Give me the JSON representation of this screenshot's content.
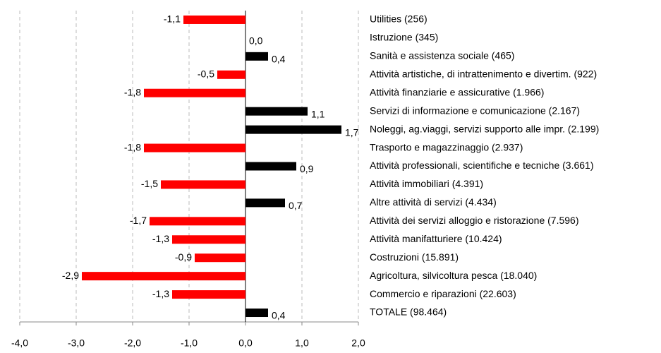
{
  "chart_data": {
    "type": "bar",
    "orientation": "horizontal",
    "categories": [
      "Utilities (256)",
      "Istruzione (345)",
      "Sanità e assistenza sociale (465)",
      "Attività artistiche, di intrattenimento e divertim. (922)",
      "Attività finanziarie e assicurative (1.966)",
      "Servizi di informazione e comunicazione (2.167)",
      "Noleggi, ag.viaggi, servizi supporto alle impr. (2.199)",
      "Trasporto e magazzinaggio (2.937)",
      "Attività professionali, scientifiche e tecniche (3.661)",
      "Attività immobiliari (4.391)",
      "Altre attività di servizi (4.434)",
      "Attività dei servizi alloggio e ristorazione (7.596)",
      "Attività manifatturiere (10.424)",
      "Costruzioni (15.891)",
      "Agricoltura, silvicoltura pesca (18.040)",
      "Commercio e riparazioni (22.603)",
      "TOTALE  (98.464)"
    ],
    "values": [
      -1.1,
      0.0,
      0.4,
      -0.5,
      -1.8,
      1.1,
      1.7,
      -1.8,
      0.9,
      -1.5,
      0.7,
      -1.7,
      -1.3,
      -0.9,
      -2.9,
      -1.3,
      0.4
    ],
    "value_labels": [
      "-1,1",
      "0,0",
      "0,4",
      "-0,5",
      "-1,8",
      "1,1",
      "1,7",
      "-1,8",
      "0,9",
      "-1,5",
      "0,7",
      "-1,7",
      "-1,3",
      "-0,9",
      "-2,9",
      "-1,3",
      "0,4"
    ],
    "positive_color": "#000000",
    "negative_color": "#ff0000",
    "xlim": [
      -4,
      2
    ],
    "xticks": [
      {
        "value": -4,
        "label": "-4,0"
      },
      {
        "value": -3,
        "label": "-3,0"
      },
      {
        "value": -2,
        "label": "-2,0"
      },
      {
        "value": -1,
        "label": "-1,0"
      },
      {
        "value": 0,
        "label": "0,0"
      },
      {
        "value": 1,
        "label": "1,0"
      },
      {
        "value": 2,
        "label": "2,0"
      }
    ],
    "grid": true
  }
}
